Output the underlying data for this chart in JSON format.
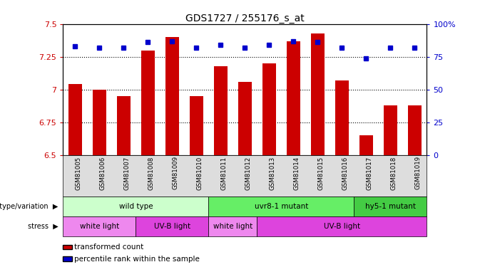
{
  "title": "GDS1727 / 255176_s_at",
  "samples": [
    "GSM81005",
    "GSM81006",
    "GSM81007",
    "GSM81008",
    "GSM81009",
    "GSM81010",
    "GSM81011",
    "GSM81012",
    "GSM81013",
    "GSM81014",
    "GSM81015",
    "GSM81016",
    "GSM81017",
    "GSM81018",
    "GSM81019"
  ],
  "bar_values": [
    7.04,
    7.0,
    6.95,
    7.3,
    7.4,
    6.95,
    7.18,
    7.06,
    7.2,
    7.37,
    7.43,
    7.07,
    6.65,
    6.88,
    6.88
  ],
  "percentile_values": [
    83,
    82,
    82,
    86,
    87,
    82,
    84,
    82,
    84,
    87,
    86,
    82,
    74,
    82,
    82
  ],
  "bar_color": "#cc0000",
  "dot_color": "#0000cc",
  "ylim_left": [
    6.5,
    7.5
  ],
  "ylim_right": [
    0,
    100
  ],
  "yticks_left": [
    6.5,
    6.75,
    7.0,
    7.25,
    7.5
  ],
  "yticks_right": [
    0,
    25,
    50,
    75,
    100
  ],
  "ytick_labels_left": [
    "6.5",
    "6.75",
    "7",
    "7.25",
    "7.5"
  ],
  "ytick_labels_right": [
    "0",
    "25",
    "50",
    "75",
    "100%"
  ],
  "hlines": [
    6.75,
    7.0,
    7.25
  ],
  "genotype_groups": [
    {
      "label": "wild type",
      "start": 0,
      "end": 5,
      "color": "#ccffcc"
    },
    {
      "label": "uvr8-1 mutant",
      "start": 6,
      "end": 11,
      "color": "#66ee66"
    },
    {
      "label": "hy5-1 mutant",
      "start": 12,
      "end": 14,
      "color": "#44cc44"
    }
  ],
  "stress_groups": [
    {
      "label": "white light",
      "start": 0,
      "end": 2,
      "color": "#ee88ee"
    },
    {
      "label": "UV-B light",
      "start": 3,
      "end": 5,
      "color": "#dd44dd"
    },
    {
      "label": "white light",
      "start": 6,
      "end": 7,
      "color": "#ee88ee"
    },
    {
      "label": "UV-B light",
      "start": 8,
      "end": 14,
      "color": "#dd44dd"
    }
  ],
  "bar_width": 0.55,
  "axis_label_color_left": "#cc0000",
  "axis_label_color_right": "#0000cc",
  "legend_red_label": "transformed count",
  "legend_blue_label": "percentile rank within the sample"
}
